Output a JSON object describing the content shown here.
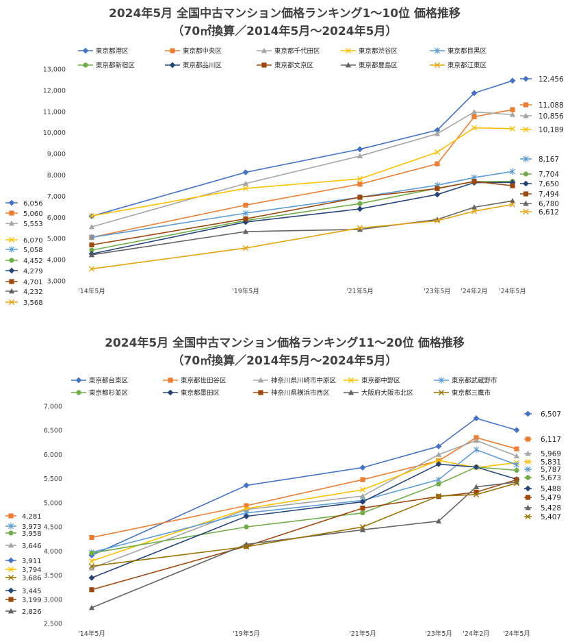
{
  "chart_data": [
    {
      "type": "line",
      "title": "2024年5月 全国中古マンション価格ランキング1～10位 価格推移",
      "subtitle": "（70㎡換算／2014年5月～2024年5月）",
      "x": [
        "'14年5月",
        "'19年5月",
        "'21年5月",
        "'23年5月",
        "'24年2月",
        "'24年5月"
      ],
      "ylim": [
        3000,
        13000
      ],
      "yticks": [
        "3,000",
        "4,000",
        "5,000",
        "6,000",
        "7,000",
        "8,000",
        "9,000",
        "10,000",
        "11,000",
        "12,000",
        "13,000"
      ],
      "grid": false,
      "legend": "top",
      "series": [
        {
          "name": "東京都港区",
          "color": "#4472c4",
          "marker": "diamond",
          "values": [
            6056,
            8130,
            9220,
            10120,
            11870,
            12456
          ],
          "start_label": "6,056",
          "end_label": "12,456"
        },
        {
          "name": "東京都中央区",
          "color": "#ed7d31",
          "marker": "square",
          "values": [
            5060,
            6580,
            7570,
            8530,
            10750,
            11088
          ],
          "start_label": "5,060",
          "end_label": "11,088"
        },
        {
          "name": "東京都千代田区",
          "color": "#a5a5a5",
          "marker": "triangle",
          "values": [
            5553,
            7600,
            8900,
            9950,
            10980,
            10856
          ],
          "start_label": "5,553",
          "end_label": "10,856"
        },
        {
          "name": "東京都渋谷区",
          "color": "#ffc000",
          "marker": "x",
          "values": [
            6070,
            7370,
            7820,
            9080,
            10230,
            10189
          ],
          "start_label": "6,070",
          "end_label": "10,189"
        },
        {
          "name": "東京都目黒区",
          "color": "#5b9bd5",
          "marker": "star",
          "values": [
            5058,
            6200,
            6950,
            7520,
            7880,
            8167
          ],
          "start_label": "5,058",
          "end_label": "8,167"
        },
        {
          "name": "東京都新宿区",
          "color": "#70ad47",
          "marker": "circle",
          "values": [
            4452,
            5850,
            6650,
            7380,
            7690,
            7704
          ],
          "start_label": "4,452",
          "end_label": "7,704"
        },
        {
          "name": "東京都品川区",
          "color": "#264478",
          "marker": "diamond",
          "values": [
            4279,
            5780,
            6400,
            7080,
            7640,
            7650
          ],
          "start_label": "4,279",
          "end_label": "7,650"
        },
        {
          "name": "東京都文京区",
          "color": "#9e480e",
          "marker": "square",
          "values": [
            4701,
            5930,
            6950,
            7360,
            7700,
            7494
          ],
          "start_label": "4,701",
          "end_label": "7,494"
        },
        {
          "name": "東京都豊島区",
          "color": "#636363",
          "marker": "triangle",
          "values": [
            4232,
            5330,
            5430,
            5900,
            6480,
            6780
          ],
          "start_label": "4,232",
          "end_label": "6,780"
        },
        {
          "name": "東京都江東区",
          "color": "#e5a40a",
          "marker": "x",
          "values": [
            3568,
            4550,
            5500,
            5840,
            6290,
            6612
          ],
          "start_label": "3,568",
          "end_label": "6,612"
        }
      ]
    },
    {
      "type": "line",
      "title": "2024年5月 全国中古マンション価格ランキング11～20位 価格推移",
      "subtitle": "（70㎡換算／2014年5月～2024年5月）",
      "x": [
        "'14年5月",
        "'19年5月",
        "'21年5月",
        "'23年5月",
        "'24年2月",
        "'24年5月"
      ],
      "ylim": [
        2500,
        7000
      ],
      "yticks": [
        "2,500",
        "3,000",
        "3,500",
        "4,000",
        "4,500",
        "5,000",
        "5,500",
        "6,000",
        "6,500",
        "7,000"
      ],
      "grid": false,
      "legend": "top",
      "series": [
        {
          "name": "東京都台東区",
          "color": "#4472c4",
          "marker": "diamond",
          "values": [
            3911,
            5360,
            5730,
            6170,
            6750,
            6507
          ],
          "start_label": "3,911",
          "end_label": "6,507"
        },
        {
          "name": "東京都世田谷区",
          "color": "#ed7d31",
          "marker": "square",
          "values": [
            4281,
            4940,
            5480,
            5870,
            6350,
            6117
          ],
          "start_label": "4,281",
          "end_label": "6,117"
        },
        {
          "name": "神奈川県川崎市中原区",
          "color": "#a5a5a5",
          "marker": "triangle",
          "values": [
            3646,
            4860,
            5140,
            6000,
            6290,
            5969
          ],
          "start_label": "3,646",
          "end_label": "5,969"
        },
        {
          "name": "東京都中野区",
          "color": "#ffc000",
          "marker": "x",
          "values": [
            3794,
            4880,
            5270,
            5880,
            5730,
            5831
          ],
          "start_label": "3,794",
          "end_label": "5,831"
        },
        {
          "name": "東京都武蔵野市",
          "color": "#5b9bd5",
          "marker": "star",
          "values": [
            3973,
            4790,
            5050,
            5480,
            6100,
            5787
          ],
          "start_label": "3,973",
          "end_label": "5,787"
        },
        {
          "name": "東京都杉並区",
          "color": "#70ad47",
          "marker": "circle",
          "values": [
            3958,
            4500,
            4790,
            5390,
            5740,
            5673
          ],
          "start_label": "3,958",
          "end_label": "5,673"
        },
        {
          "name": "東京都墨田区",
          "color": "#264478",
          "marker": "diamond",
          "values": [
            3445,
            4720,
            5020,
            5800,
            5740,
            5488
          ],
          "start_label": "3,445",
          "end_label": "5,488"
        },
        {
          "name": "神奈川県横浜市西区",
          "color": "#9e480e",
          "marker": "square",
          "values": [
            3199,
            4100,
            4890,
            5130,
            5220,
            5479
          ],
          "start_label": "3,199",
          "end_label": "5,479"
        },
        {
          "name": "大阪府大阪市北区",
          "color": "#636363",
          "marker": "triangle",
          "values": [
            2826,
            4140,
            4440,
            4620,
            5330,
            5428
          ],
          "start_label": "2,826",
          "end_label": "5,428"
        },
        {
          "name": "東京都三鷹市",
          "color": "#997300",
          "marker": "x",
          "values": [
            3686,
            4090,
            4500,
            5140,
            5170,
            5407
          ],
          "start_label": "3,686",
          "end_label": "5,407"
        }
      ]
    }
  ]
}
